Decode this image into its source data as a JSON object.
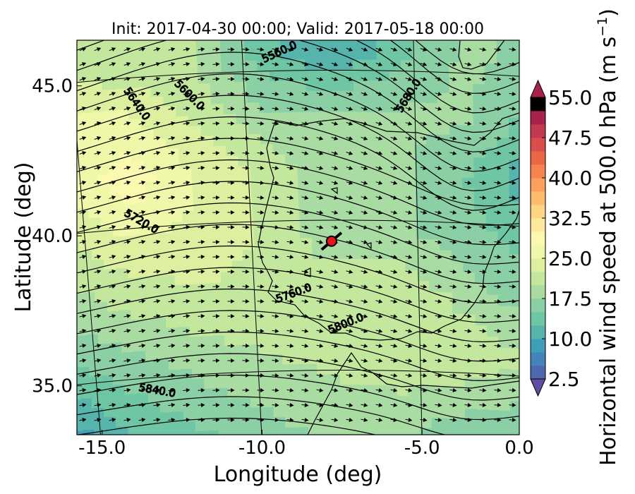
{
  "chart_data": {
    "type": "heatmap",
    "title": "Init: 2017-04-30 00:00; Valid: 2017-05-18 00:00",
    "xlabel": "Longitude (deg)",
    "ylabel": "Latitude (deg)",
    "xlim": [
      -15.9,
      0.3
    ],
    "ylim": [
      32.6,
      46.0
    ],
    "x_ticks": [
      -15.0,
      -10.0,
      -5.0,
      0.0
    ],
    "x_tick_labels": [
      "-15.0",
      "-10.0",
      "-5.0",
      "0.0"
    ],
    "y_ticks": [
      35.0,
      40.0,
      45.0
    ],
    "y_tick_labels": [
      "35.0",
      "40.0",
      "45.0"
    ],
    "colorbar": {
      "label": "Horizontal wind speed at 500.0 hPa (m s",
      "label_superscript": "−1",
      "label_close": ")",
      "min": 2.5,
      "max": 55.0,
      "step": 2.5,
      "tick_values": [
        2.5,
        10.0,
        17.5,
        25.0,
        32.5,
        40.0,
        47.5,
        55.0
      ],
      "tick_labels": [
        "2.5",
        "10.0",
        "17.5",
        "25.0",
        "32.5",
        "40.0",
        "47.5",
        "55.0"
      ],
      "extend": "both",
      "colormap": "Spectral_r",
      "colors": [
        "#5e4fa2",
        "#4f68ad",
        "#4484bb",
        "#3f9fb6",
        "#56b4ad",
        "#6fc6a5",
        "#8bd0a4",
        "#a8dca3",
        "#c3e89d",
        "#dcf0a0",
        "#eef8a8",
        "#fbf9af",
        "#fee99a",
        "#fdd585",
        "#fdbc6c",
        "#fba05d",
        "#f6844f",
        "#ea6746",
        "#d94d4a",
        "#c23a4f",
        "#a8224a"
      ]
    },
    "contours": {
      "variable": "500 hPa geopotential height",
      "labels": [
        "5560.0",
        "5600.0",
        "5640.0",
        "5680.0",
        "5720.0",
        "5760.0",
        "5800.0",
        "5840.0"
      ]
    },
    "marker": {
      "lon": -7.6,
      "lat": 39.3,
      "color": "#e8141e"
    },
    "wind_field_speed_grid": {
      "lons": [
        -15.5,
        -13.5,
        -11.5,
        -9.5,
        -7.5,
        -5.5,
        -3.5,
        -1.5,
        0.0
      ],
      "lats": [
        45.5,
        43.5,
        41.5,
        39.5,
        37.5,
        35.5,
        33.0
      ],
      "values": [
        [
          21,
          20,
          20,
          14,
          10,
          14,
          18,
          17,
          15
        ],
        [
          27,
          26,
          22,
          18,
          18,
          18,
          18,
          14,
          12
        ],
        [
          26,
          29,
          25,
          22,
          18,
          18,
          15,
          10,
          12
        ],
        [
          22,
          25,
          24,
          22,
          18,
          18,
          16,
          14,
          13
        ],
        [
          19,
          21,
          22,
          22,
          22,
          22,
          19,
          16,
          15
        ],
        [
          15,
          17,
          19,
          20,
          21,
          22,
          22,
          20,
          17
        ],
        [
          9,
          13,
          15,
          17,
          18,
          18,
          16,
          15,
          12
        ]
      ]
    }
  }
}
